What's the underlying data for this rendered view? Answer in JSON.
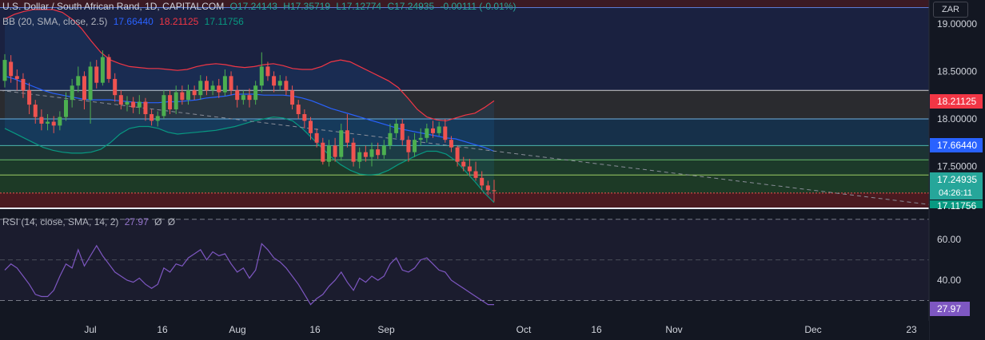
{
  "header": {
    "symbol": "U.S. Dollar / South African Rand, 1D, CAPITALCOM",
    "open": "O17.24143",
    "high": "H17.35719",
    "low": "L17.12774",
    "close": "C17.24935",
    "change": "-0.00111 (-0.01%)",
    "bb_label": "BB (20, SMA, close, 2.5)",
    "bb_basis": "17.66440",
    "bb_upper": "18.21125",
    "bb_lower": "17.11756",
    "rsi_label": "RSI (14, close, SMA, 14, 2)",
    "rsi_value": "27.97",
    "rsi_na1": "Ø",
    "rsi_na2": "Ø",
    "currency": "ZAR"
  },
  "colors": {
    "background": "#131722",
    "up": "#26a69a",
    "candle_up": "#4caf50",
    "down": "#ef5350",
    "bb_basis": "#2962ff",
    "bb_upper": "#f23645",
    "bb_lower": "#089981",
    "rsi": "#7e57c2"
  },
  "price_badges": {
    "upper": "18.21125",
    "basis": "17.66440",
    "last": "17.24935",
    "countdown": "04:26:11",
    "lower": "17.11756",
    "rsi": "27.97"
  },
  "chart_data": [
    {
      "type": "candlestick",
      "title": "U.S. Dollar / South African Rand, 1D, CAPITALCOM",
      "ylim": [
        17.06,
        19.25
      ],
      "y_ticks": [
        "19.00000",
        "18.50000",
        "18.00000",
        "17.50000"
      ],
      "x_ticks": [
        "Jul",
        "16",
        "Aug",
        "16",
        "Sep",
        "Oct",
        "16",
        "Nov",
        "Dec",
        "23"
      ],
      "horizontal_levels": [
        19.17,
        18.3,
        18.0,
        17.72,
        17.57,
        17.41,
        17.22
      ],
      "candles": [
        {
          "o": 18.4,
          "c": 18.62,
          "h": 18.68,
          "l": 18.33
        },
        {
          "o": 18.6,
          "c": 18.45,
          "h": 18.67,
          "l": 18.38
        },
        {
          "o": 18.45,
          "c": 18.42,
          "h": 18.52,
          "l": 18.3
        },
        {
          "o": 18.42,
          "c": 18.3,
          "h": 18.48,
          "l": 18.22
        },
        {
          "o": 18.3,
          "c": 18.15,
          "h": 18.38,
          "l": 18.05
        },
        {
          "o": 18.15,
          "c": 18.02,
          "h": 18.2,
          "l": 17.95
        },
        {
          "o": 18.02,
          "c": 17.95,
          "h": 18.1,
          "l": 17.88
        },
        {
          "o": 17.95,
          "c": 17.97,
          "h": 18.05,
          "l": 17.88
        },
        {
          "o": 17.97,
          "c": 17.93,
          "h": 18.03,
          "l": 17.85
        },
        {
          "o": 17.93,
          "c": 18.02,
          "h": 18.08,
          "l": 17.88
        },
        {
          "o": 18.02,
          "c": 18.2,
          "h": 18.28,
          "l": 17.98
        },
        {
          "o": 18.2,
          "c": 18.35,
          "h": 18.42,
          "l": 18.12
        },
        {
          "o": 18.35,
          "c": 18.45,
          "h": 18.55,
          "l": 18.28
        },
        {
          "o": 18.45,
          "c": 18.2,
          "h": 18.5,
          "l": 18.1
        },
        {
          "o": 18.2,
          "c": 18.55,
          "h": 18.6,
          "l": 17.95
        },
        {
          "o": 18.55,
          "c": 18.38,
          "h": 18.62,
          "l": 18.32
        },
        {
          "o": 18.38,
          "c": 18.65,
          "h": 18.72,
          "l": 18.35
        },
        {
          "o": 18.65,
          "c": 18.42,
          "h": 18.68,
          "l": 18.38
        },
        {
          "o": 18.42,
          "c": 18.25,
          "h": 18.48,
          "l": 18.18
        },
        {
          "o": 18.25,
          "c": 18.15,
          "h": 18.3,
          "l": 18.1
        },
        {
          "o": 18.15,
          "c": 18.18,
          "h": 18.24,
          "l": 18.08
        },
        {
          "o": 18.18,
          "c": 18.12,
          "h": 18.23,
          "l": 18.06
        },
        {
          "o": 18.12,
          "c": 18.18,
          "h": 18.25,
          "l": 18.05
        },
        {
          "o": 18.18,
          "c": 18.05,
          "h": 18.22,
          "l": 17.98
        },
        {
          "o": 18.05,
          "c": 17.98,
          "h": 18.1,
          "l": 17.93
        },
        {
          "o": 17.98,
          "c": 18.03,
          "h": 18.08,
          "l": 17.92
        },
        {
          "o": 18.03,
          "c": 18.25,
          "h": 18.3,
          "l": 18.0
        },
        {
          "o": 18.25,
          "c": 18.1,
          "h": 18.3,
          "l": 18.05
        },
        {
          "o": 18.1,
          "c": 18.28,
          "h": 18.35,
          "l": 18.05
        },
        {
          "o": 18.28,
          "c": 18.2,
          "h": 18.35,
          "l": 18.15
        },
        {
          "o": 18.2,
          "c": 18.3,
          "h": 18.36,
          "l": 18.15
        },
        {
          "o": 18.3,
          "c": 18.25,
          "h": 18.35,
          "l": 18.2
        },
        {
          "o": 18.25,
          "c": 18.4,
          "h": 18.46,
          "l": 18.2
        },
        {
          "o": 18.4,
          "c": 18.3,
          "h": 18.45,
          "l": 18.25
        },
        {
          "o": 18.3,
          "c": 18.35,
          "h": 18.4,
          "l": 18.25
        },
        {
          "o": 18.35,
          "c": 18.28,
          "h": 18.42,
          "l": 18.22
        },
        {
          "o": 18.28,
          "c": 18.45,
          "h": 18.52,
          "l": 18.24
        },
        {
          "o": 18.45,
          "c": 18.3,
          "h": 18.5,
          "l": 18.25
        },
        {
          "o": 18.3,
          "c": 18.2,
          "h": 18.35,
          "l": 18.12
        },
        {
          "o": 18.2,
          "c": 18.25,
          "h": 18.3,
          "l": 18.15
        },
        {
          "o": 18.25,
          "c": 18.2,
          "h": 18.32,
          "l": 18.12
        },
        {
          "o": 18.2,
          "c": 18.35,
          "h": 18.4,
          "l": 18.15
        },
        {
          "o": 18.35,
          "c": 18.55,
          "h": 18.7,
          "l": 18.28
        },
        {
          "o": 18.55,
          "c": 18.45,
          "h": 18.6,
          "l": 18.4
        },
        {
          "o": 18.45,
          "c": 18.35,
          "h": 18.5,
          "l": 18.28
        },
        {
          "o": 18.35,
          "c": 18.4,
          "h": 18.46,
          "l": 18.3
        },
        {
          "o": 18.4,
          "c": 18.3,
          "h": 18.45,
          "l": 18.25
        },
        {
          "o": 18.3,
          "c": 18.15,
          "h": 18.35,
          "l": 18.1
        },
        {
          "o": 18.15,
          "c": 18.05,
          "h": 18.2,
          "l": 18.0
        },
        {
          "o": 18.05,
          "c": 17.98,
          "h": 18.1,
          "l": 17.9
        },
        {
          "o": 17.98,
          "c": 17.85,
          "h": 18.02,
          "l": 17.78
        },
        {
          "o": 17.85,
          "c": 17.75,
          "h": 17.9,
          "l": 17.7
        },
        {
          "o": 17.75,
          "c": 17.55,
          "h": 17.8,
          "l": 17.52
        },
        {
          "o": 17.55,
          "c": 17.72,
          "h": 17.78,
          "l": 17.5
        },
        {
          "o": 17.72,
          "c": 17.6,
          "h": 17.8,
          "l": 17.55
        },
        {
          "o": 17.6,
          "c": 17.88,
          "h": 17.95,
          "l": 17.56
        },
        {
          "o": 17.88,
          "c": 17.75,
          "h": 18.05,
          "l": 17.7
        },
        {
          "o": 17.75,
          "c": 17.55,
          "h": 17.8,
          "l": 17.5
        },
        {
          "o": 17.55,
          "c": 17.65,
          "h": 17.7,
          "l": 17.48
        },
        {
          "o": 17.65,
          "c": 17.6,
          "h": 17.72,
          "l": 17.55
        },
        {
          "o": 17.6,
          "c": 17.68,
          "h": 17.75,
          "l": 17.5
        },
        {
          "o": 17.68,
          "c": 17.62,
          "h": 17.75,
          "l": 17.58
        },
        {
          "o": 17.62,
          "c": 17.72,
          "h": 17.78,
          "l": 17.58
        },
        {
          "o": 17.72,
          "c": 17.85,
          "h": 17.95,
          "l": 17.68
        },
        {
          "o": 17.85,
          "c": 17.95,
          "h": 18.0,
          "l": 17.8
        },
        {
          "o": 17.95,
          "c": 17.78,
          "h": 18.0,
          "l": 17.72
        },
        {
          "o": 17.78,
          "c": 17.65,
          "h": 17.82,
          "l": 17.55
        },
        {
          "o": 17.65,
          "c": 17.78,
          "h": 17.85,
          "l": 17.6
        },
        {
          "o": 17.78,
          "c": 17.8,
          "h": 17.9,
          "l": 17.72
        },
        {
          "o": 17.8,
          "c": 17.9,
          "h": 17.95,
          "l": 17.75
        },
        {
          "o": 17.9,
          "c": 17.85,
          "h": 17.98,
          "l": 17.8
        },
        {
          "o": 17.85,
          "c": 17.92,
          "h": 17.97,
          "l": 17.82
        },
        {
          "o": 17.92,
          "c": 17.78,
          "h": 18.0,
          "l": 17.75
        },
        {
          "o": 17.78,
          "c": 17.7,
          "h": 17.82,
          "l": 17.65
        },
        {
          "o": 17.7,
          "c": 17.55,
          "h": 17.72,
          "l": 17.5
        },
        {
          "o": 17.55,
          "c": 17.5,
          "h": 17.6,
          "l": 17.45
        },
        {
          "o": 17.5,
          "c": 17.45,
          "h": 17.58,
          "l": 17.4
        },
        {
          "o": 17.45,
          "c": 17.38,
          "h": 17.55,
          "l": 17.35
        },
        {
          "o": 17.38,
          "c": 17.3,
          "h": 17.45,
          "l": 17.25
        },
        {
          "o": 17.3,
          "c": 17.25,
          "h": 17.35,
          "l": 17.2
        },
        {
          "o": 17.25,
          "c": 17.24,
          "h": 17.36,
          "l": 17.13
        }
      ],
      "bb_upper": [
        19.05,
        19.1,
        19.13,
        19.15,
        19.15,
        19.15,
        19.12,
        19.05,
        18.95,
        18.82,
        18.7,
        18.62,
        18.58,
        18.55,
        18.54,
        18.53,
        18.53,
        18.52,
        18.51,
        18.52,
        18.55,
        18.57,
        18.58,
        18.57,
        18.55,
        18.54,
        18.55,
        18.57,
        18.58,
        18.56,
        18.53,
        18.52,
        18.52,
        18.55,
        18.6,
        18.62,
        18.6,
        18.55,
        18.5,
        18.45,
        18.4,
        18.33,
        18.22,
        18.1,
        18.02,
        17.99,
        17.98,
        18.01,
        18.04,
        18.06,
        18.12,
        18.19
      ],
      "bb_basis": [
        18.45,
        18.42,
        18.38,
        18.34,
        18.3,
        18.27,
        18.25,
        18.23,
        18.21,
        18.2,
        18.2,
        18.2,
        18.19,
        18.18,
        18.17,
        18.17,
        18.17,
        18.18,
        18.18,
        18.19,
        18.2,
        18.22,
        18.23,
        18.24,
        18.26,
        18.26,
        18.26,
        18.25,
        18.25,
        18.25,
        18.24,
        18.22,
        18.19,
        18.15,
        18.11,
        18.08,
        18.05,
        18.02,
        17.99,
        17.96,
        17.93,
        17.9,
        17.88,
        17.86,
        17.84,
        17.82,
        17.8,
        17.79,
        17.76,
        17.73,
        17.7,
        17.66
      ],
      "bb_lower": [
        17.9,
        17.85,
        17.8,
        17.75,
        17.7,
        17.67,
        17.65,
        17.64,
        17.64,
        17.65,
        17.68,
        17.75,
        17.84,
        17.9,
        17.92,
        17.92,
        17.9,
        17.86,
        17.84,
        17.85,
        17.86,
        17.87,
        17.88,
        17.9,
        17.92,
        17.95,
        17.98,
        18.0,
        18.02,
        18.01,
        17.98,
        17.9,
        17.8,
        17.7,
        17.6,
        17.52,
        17.46,
        17.42,
        17.41,
        17.42,
        17.46,
        17.52,
        17.57,
        17.62,
        17.66,
        17.66,
        17.63,
        17.56,
        17.45,
        17.34,
        17.22,
        17.12
      ],
      "trendline": [
        [
          18.3,
          17.1
        ]
      ]
    },
    {
      "type": "line",
      "title": "RSI (14, close, SMA, 14, 2)",
      "ylim": [
        20,
        75
      ],
      "y_ticks": [
        "60.00",
        "40.00"
      ],
      "bands": [
        70,
        30
      ],
      "series": [
        {
          "name": "RSI",
          "values": [
            45,
            48,
            46,
            42,
            38,
            33,
            32,
            32,
            35,
            42,
            48,
            46,
            55,
            47,
            52,
            57,
            52,
            48,
            44,
            42,
            40,
            39,
            41,
            38,
            36,
            38,
            46,
            44,
            48,
            47,
            51,
            53,
            55,
            50,
            54,
            52,
            53,
            48,
            44,
            46,
            41,
            45,
            58,
            55,
            51,
            49,
            46,
            42,
            38,
            33,
            28,
            31,
            33,
            37,
            40,
            44,
            39,
            35,
            41,
            39,
            42,
            40,
            42,
            48,
            51,
            45,
            44,
            46,
            50,
            51,
            48,
            45,
            44,
            40,
            38,
            36,
            34,
            32,
            30,
            28,
            28
          ]
        }
      ]
    }
  ]
}
